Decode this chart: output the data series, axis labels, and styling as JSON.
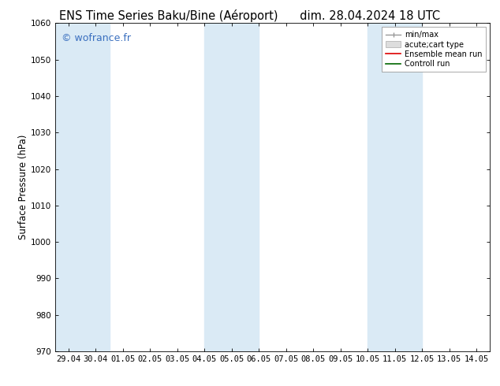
{
  "title_left": "ENS Time Series Baku/Bine (Aéroport)",
  "title_right": "dim. 28.04.2024 18 UTC",
  "ylabel": "Surface Pressure (hPa)",
  "ylim": [
    970,
    1060
  ],
  "yticks": [
    970,
    980,
    990,
    1000,
    1010,
    1020,
    1030,
    1040,
    1050,
    1060
  ],
  "x_labels": [
    "29.04",
    "30.04",
    "01.05",
    "02.05",
    "03.05",
    "04.05",
    "05.05",
    "06.05",
    "07.05",
    "08.05",
    "09.05",
    "10.05",
    "11.05",
    "12.05",
    "13.05",
    "14.05"
  ],
  "x_positions": [
    0,
    1,
    2,
    3,
    4,
    5,
    6,
    7,
    8,
    9,
    10,
    11,
    12,
    13,
    14,
    15
  ],
  "shaded_regions": [
    {
      "xmin": -0.5,
      "xmax": 1.5
    },
    {
      "xmin": 5,
      "xmax": 7
    },
    {
      "xmin": 11,
      "xmax": 13
    }
  ],
  "shaded_color": "#daeaf5",
  "watermark": "© wofrance.fr",
  "watermark_color": "#3a6fbf",
  "background_color": "#ffffff",
  "legend_items": [
    {
      "label": "min/max",
      "color": "#aaaaaa",
      "lw": 1.2
    },
    {
      "label": "acute;cart type",
      "color": "#cccccc",
      "lw": 6
    },
    {
      "label": "Ensemble mean run",
      "color": "#ff0000",
      "lw": 1.2
    },
    {
      "label": "Controll run",
      "color": "#007700",
      "lw": 1.2
    }
  ],
  "title_fontsize": 10.5,
  "tick_fontsize": 7.5,
  "ylabel_fontsize": 8.5,
  "watermark_fontsize": 9,
  "legend_fontsize": 7
}
